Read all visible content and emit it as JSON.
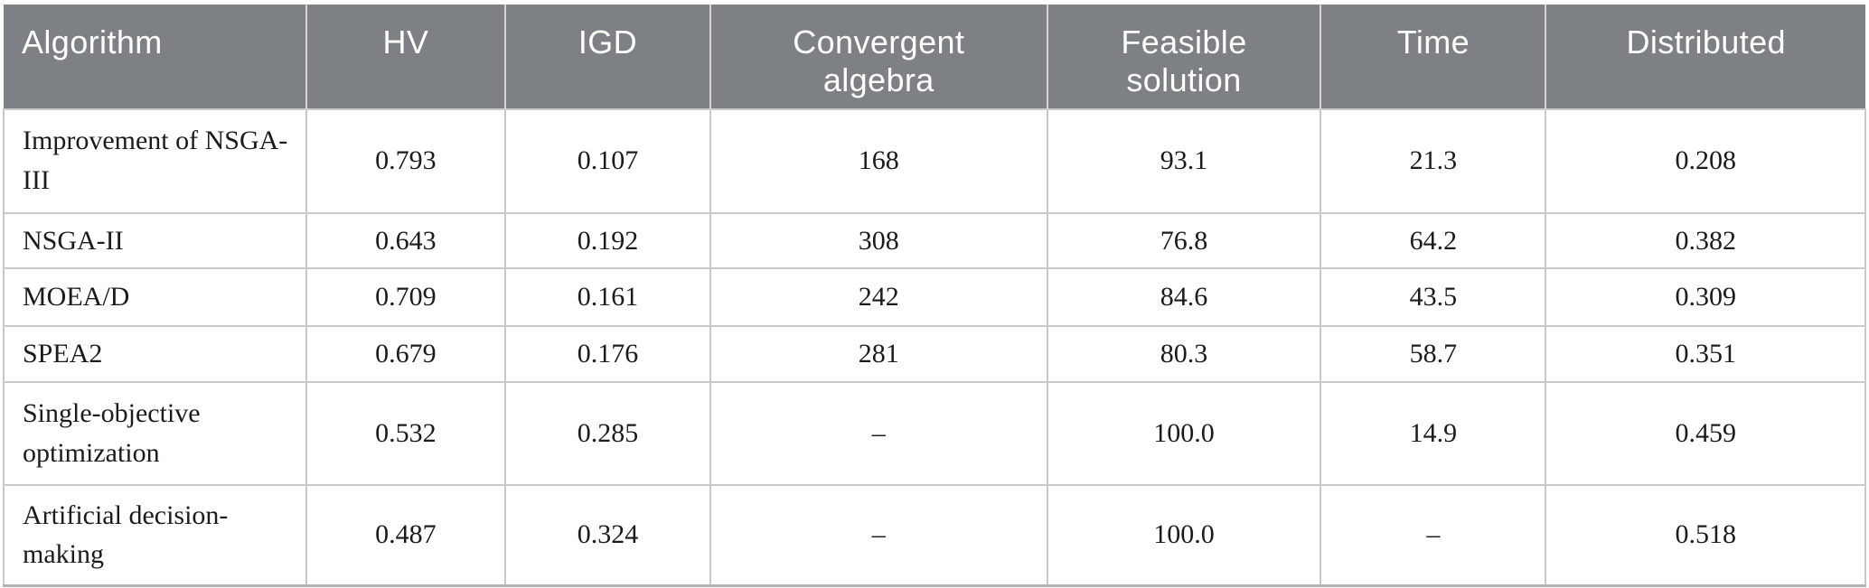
{
  "table": {
    "headers": [
      "Algorithm",
      "HV",
      "IGD",
      "Convergent algebra",
      "Feasible solution",
      "Time",
      "Distributed"
    ],
    "rows": [
      {
        "cells": [
          "Improvement of NSGA-III",
          "0.793",
          "0.107",
          "168",
          "93.1",
          "21.3",
          "0.208"
        ]
      },
      {
        "cells": [
          "NSGA-II",
          "0.643",
          "0.192",
          "308",
          "76.8",
          "64.2",
          "0.382"
        ]
      },
      {
        "cells": [
          "MOEA/D",
          "0.709",
          "0.161",
          "242",
          "84.6",
          "43.5",
          "0.309"
        ]
      },
      {
        "cells": [
          "SPEA2",
          "0.679",
          "0.176",
          "281",
          "80.3",
          "58.7",
          "0.351"
        ]
      },
      {
        "cells": [
          "Single-objective optimization",
          "0.532",
          "0.285",
          "–",
          "100.0",
          "14.9",
          "0.459"
        ]
      },
      {
        "cells": [
          "Artificial decision-making",
          "0.487",
          "0.324",
          "–",
          "100.0",
          "–",
          "0.518"
        ]
      }
    ]
  },
  "colors": {
    "page_bg": "#ffffff",
    "header_bg": "#7e8183",
    "header_text": "#ffffff",
    "header_divider": "#d4d4d4",
    "body_text": "#1b1b1b",
    "grid_line": "#c9c9c9",
    "table_bottom_border": "#b3b3b3"
  }
}
